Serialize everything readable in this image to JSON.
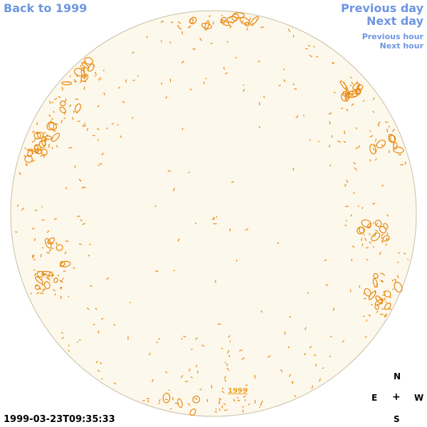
{
  "nav": {
    "back": "Back to 1999",
    "previous_day": "Previous day",
    "next_day": "Next day",
    "previous_hour": "Previous hour",
    "next_hour": "Next hour"
  },
  "disc": {
    "year_label": "1999",
    "disc_fill": "#fdf8ec",
    "disc_stroke": "#c9bfa6",
    "contour_color": "#e8870c"
  },
  "timestamp": "1999-03-23T09:35:33",
  "compass": {
    "n": "N",
    "e": "E",
    "w": "W",
    "s": "S",
    "center": "+"
  }
}
